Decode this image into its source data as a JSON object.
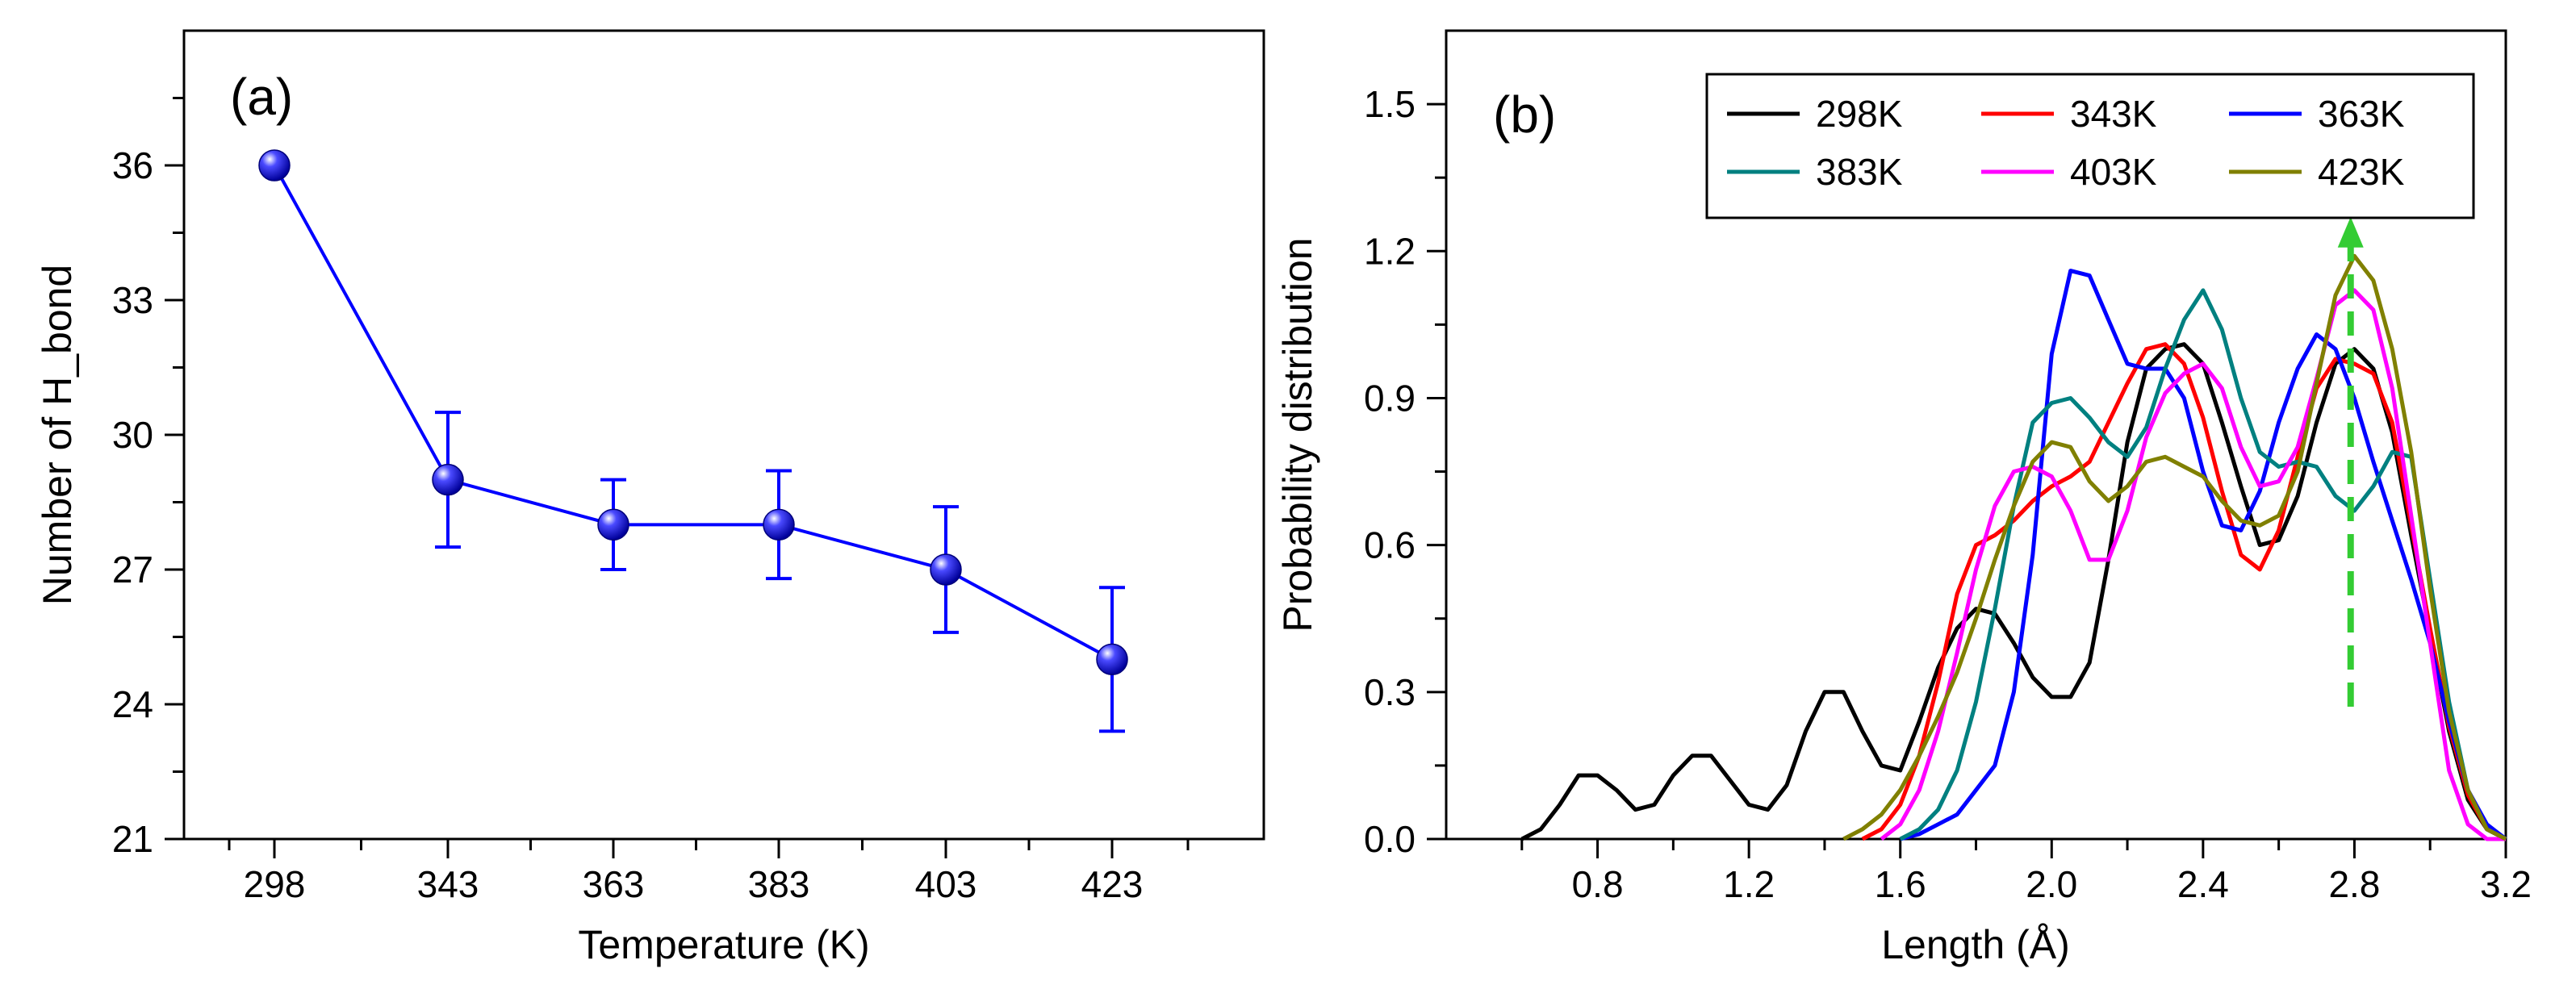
{
  "chart_data": [
    {
      "type": "line",
      "panel_label": "(a)",
      "xlabel": "Temperature (K)",
      "ylabel": "Number of H_bond",
      "categories": [
        "298",
        "343",
        "363",
        "383",
        "403",
        "423"
      ],
      "series": [
        {
          "name": "H_bond",
          "color": "#0000ff",
          "values": [
            36,
            29,
            28,
            28,
            27,
            25
          ],
          "errors": [
            0,
            1.5,
            1.0,
            1.2,
            1.4,
            1.6
          ]
        }
      ],
      "ylim": [
        21,
        39
      ],
      "yticks": [
        21,
        24,
        27,
        30,
        33,
        36
      ],
      "ytick_labels": [
        "21",
        "24",
        "27",
        "30",
        "33",
        "36"
      ]
    },
    {
      "type": "line",
      "panel_label": "(b)",
      "xlabel": "Length (Å)",
      "ylabel": "Probability distribution",
      "xlim": [
        0.4,
        3.2
      ],
      "ylim": [
        0,
        1.65
      ],
      "xticks": [
        0.8,
        1.2,
        1.6,
        2.0,
        2.4,
        2.8,
        3.2
      ],
      "xtick_labels": [
        "0.8",
        "1.2",
        "1.6",
        "2.0",
        "2.4",
        "2.8",
        "3.2"
      ],
      "yticks": [
        0,
        0.3,
        0.6,
        0.9,
        1.2,
        1.5
      ],
      "ytick_labels": [
        "0.0",
        "0.3",
        "0.6",
        "0.9",
        "1.2",
        "1.5"
      ],
      "legend_position": "top-right",
      "series": [
        {
          "name": "298K",
          "color": "#000000",
          "x": [
            0.6,
            0.65,
            0.7,
            0.75,
            0.8,
            0.85,
            0.9,
            0.95,
            1.0,
            1.05,
            1.1,
            1.15,
            1.2,
            1.25,
            1.3,
            1.35,
            1.4,
            1.45,
            1.5,
            1.55,
            1.6,
            1.65,
            1.7,
            1.75,
            1.8,
            1.85,
            1.9,
            1.95,
            2.0,
            2.05,
            2.1,
            2.15,
            2.2,
            2.25,
            2.3,
            2.35,
            2.4,
            2.45,
            2.5,
            2.55,
            2.6,
            2.65,
            2.7,
            2.75,
            2.8,
            2.85,
            2.9,
            2.95,
            3.0,
            3.05,
            3.1,
            3.15,
            3.2
          ],
          "y": [
            0.0,
            0.02,
            0.07,
            0.13,
            0.13,
            0.1,
            0.06,
            0.07,
            0.13,
            0.17,
            0.17,
            0.12,
            0.07,
            0.06,
            0.11,
            0.22,
            0.3,
            0.3,
            0.22,
            0.15,
            0.14,
            0.24,
            0.35,
            0.43,
            0.47,
            0.46,
            0.4,
            0.33,
            0.29,
            0.29,
            0.36,
            0.57,
            0.81,
            0.96,
            1.0,
            1.01,
            0.97,
            0.85,
            0.72,
            0.6,
            0.61,
            0.7,
            0.85,
            0.97,
            1.0,
            0.96,
            0.83,
            0.62,
            0.42,
            0.22,
            0.08,
            0.02,
            0.0
          ]
        },
        {
          "name": "343K",
          "color": "#ff0000",
          "x": [
            1.5,
            1.55,
            1.6,
            1.65,
            1.7,
            1.75,
            1.8,
            1.85,
            1.9,
            1.95,
            2.0,
            2.05,
            2.1,
            2.15,
            2.2,
            2.25,
            2.3,
            2.35,
            2.4,
            2.45,
            2.5,
            2.55,
            2.6,
            2.65,
            2.7,
            2.75,
            2.8,
            2.85,
            2.9,
            2.95,
            3.0,
            3.05,
            3.1,
            3.15,
            3.2
          ],
          "y": [
            0.0,
            0.02,
            0.07,
            0.17,
            0.32,
            0.5,
            0.6,
            0.62,
            0.65,
            0.69,
            0.72,
            0.74,
            0.77,
            0.85,
            0.93,
            1.0,
            1.01,
            0.97,
            0.86,
            0.71,
            0.58,
            0.55,
            0.63,
            0.78,
            0.92,
            0.98,
            0.97,
            0.95,
            0.85,
            0.64,
            0.43,
            0.23,
            0.09,
            0.02,
            0.0
          ]
        },
        {
          "name": "363K",
          "color": "#0000ff",
          "x": [
            1.6,
            1.65,
            1.7,
            1.75,
            1.8,
            1.85,
            1.9,
            1.95,
            2.0,
            2.05,
            2.1,
            2.15,
            2.2,
            2.25,
            2.3,
            2.35,
            2.4,
            2.45,
            2.5,
            2.55,
            2.6,
            2.65,
            2.7,
            2.75,
            2.8,
            2.85,
            2.9,
            2.95,
            3.0,
            3.05,
            3.1,
            3.15,
            3.2
          ],
          "y": [
            0.0,
            0.01,
            0.03,
            0.05,
            0.1,
            0.15,
            0.3,
            0.58,
            0.99,
            1.16,
            1.15,
            1.06,
            0.97,
            0.96,
            0.96,
            0.9,
            0.75,
            0.64,
            0.63,
            0.71,
            0.85,
            0.96,
            1.03,
            1.0,
            0.9,
            0.77,
            0.65,
            0.53,
            0.4,
            0.24,
            0.1,
            0.03,
            0.0
          ]
        },
        {
          "name": "383K",
          "color": "#008080",
          "x": [
            1.6,
            1.65,
            1.7,
            1.75,
            1.8,
            1.85,
            1.9,
            1.95,
            2.0,
            2.05,
            2.1,
            2.15,
            2.2,
            2.25,
            2.3,
            2.35,
            2.4,
            2.45,
            2.5,
            2.55,
            2.6,
            2.65,
            2.7,
            2.75,
            2.8,
            2.85,
            2.9,
            2.95,
            3.0,
            3.05,
            3.1,
            3.15,
            3.2
          ],
          "y": [
            0.0,
            0.02,
            0.06,
            0.14,
            0.28,
            0.47,
            0.68,
            0.85,
            0.89,
            0.9,
            0.86,
            0.81,
            0.78,
            0.84,
            0.96,
            1.06,
            1.12,
            1.04,
            0.9,
            0.79,
            0.76,
            0.77,
            0.76,
            0.7,
            0.67,
            0.72,
            0.79,
            0.78,
            0.53,
            0.28,
            0.1,
            0.02,
            0.0
          ]
        },
        {
          "name": "403K",
          "color": "#ff00ff",
          "x": [
            1.55,
            1.6,
            1.65,
            1.7,
            1.75,
            1.8,
            1.85,
            1.9,
            1.95,
            2.0,
            2.05,
            2.1,
            2.15,
            2.2,
            2.25,
            2.3,
            2.35,
            2.4,
            2.45,
            2.5,
            2.55,
            2.6,
            2.65,
            2.7,
            2.75,
            2.8,
            2.85,
            2.9,
            2.95,
            3.0,
            3.05,
            3.1,
            3.15,
            3.2
          ],
          "y": [
            0.0,
            0.03,
            0.1,
            0.22,
            0.38,
            0.55,
            0.68,
            0.75,
            0.76,
            0.74,
            0.67,
            0.57,
            0.57,
            0.67,
            0.82,
            0.91,
            0.95,
            0.97,
            0.92,
            0.8,
            0.72,
            0.73,
            0.8,
            0.94,
            1.09,
            1.12,
            1.08,
            0.92,
            0.66,
            0.4,
            0.14,
            0.03,
            0.0,
            0.0
          ]
        },
        {
          "name": "423K",
          "color": "#808000",
          "x": [
            1.45,
            1.5,
            1.55,
            1.6,
            1.65,
            1.7,
            1.75,
            1.8,
            1.85,
            1.9,
            1.95,
            2.0,
            2.05,
            2.1,
            2.15,
            2.2,
            2.25,
            2.3,
            2.35,
            2.4,
            2.45,
            2.5,
            2.55,
            2.6,
            2.65,
            2.7,
            2.75,
            2.8,
            2.85,
            2.9,
            2.95,
            3.0,
            3.05,
            3.1,
            3.15,
            3.2
          ],
          "y": [
            0.0,
            0.02,
            0.05,
            0.1,
            0.17,
            0.25,
            0.34,
            0.45,
            0.57,
            0.68,
            0.77,
            0.81,
            0.8,
            0.73,
            0.69,
            0.72,
            0.77,
            0.78,
            0.76,
            0.74,
            0.69,
            0.65,
            0.64,
            0.66,
            0.75,
            0.93,
            1.11,
            1.19,
            1.14,
            1.0,
            0.79,
            0.51,
            0.26,
            0.1,
            0.02,
            0.0
          ]
        }
      ],
      "annotation": {
        "type": "arrow",
        "color": "#33cc33",
        "x": 2.79,
        "y_from": 0.27,
        "y_to": 1.27
      }
    }
  ]
}
